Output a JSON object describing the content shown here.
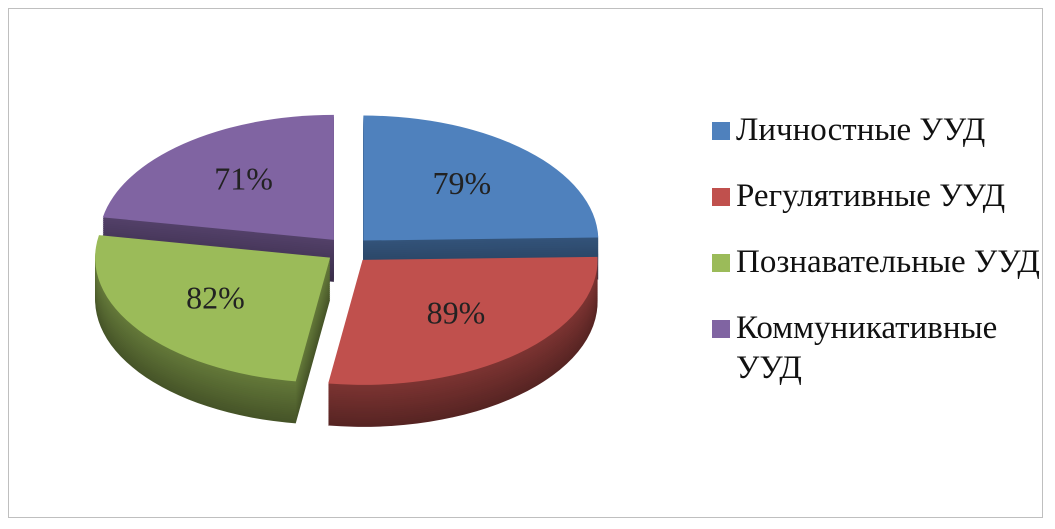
{
  "chart_data": {
    "type": "pie",
    "categories": [
      "Личностные УУД",
      "Регулятивные УУД",
      "Познавательные УУД",
      "Коммуникативные УУД"
    ],
    "values": [
      79,
      89,
      82,
      71
    ],
    "value_labels": [
      "79%",
      "89%",
      "82%",
      "71%"
    ],
    "colors": [
      "#4f81bd",
      "#c0504d",
      "#9bbb59",
      "#8064a2"
    ],
    "legend": "right"
  }
}
